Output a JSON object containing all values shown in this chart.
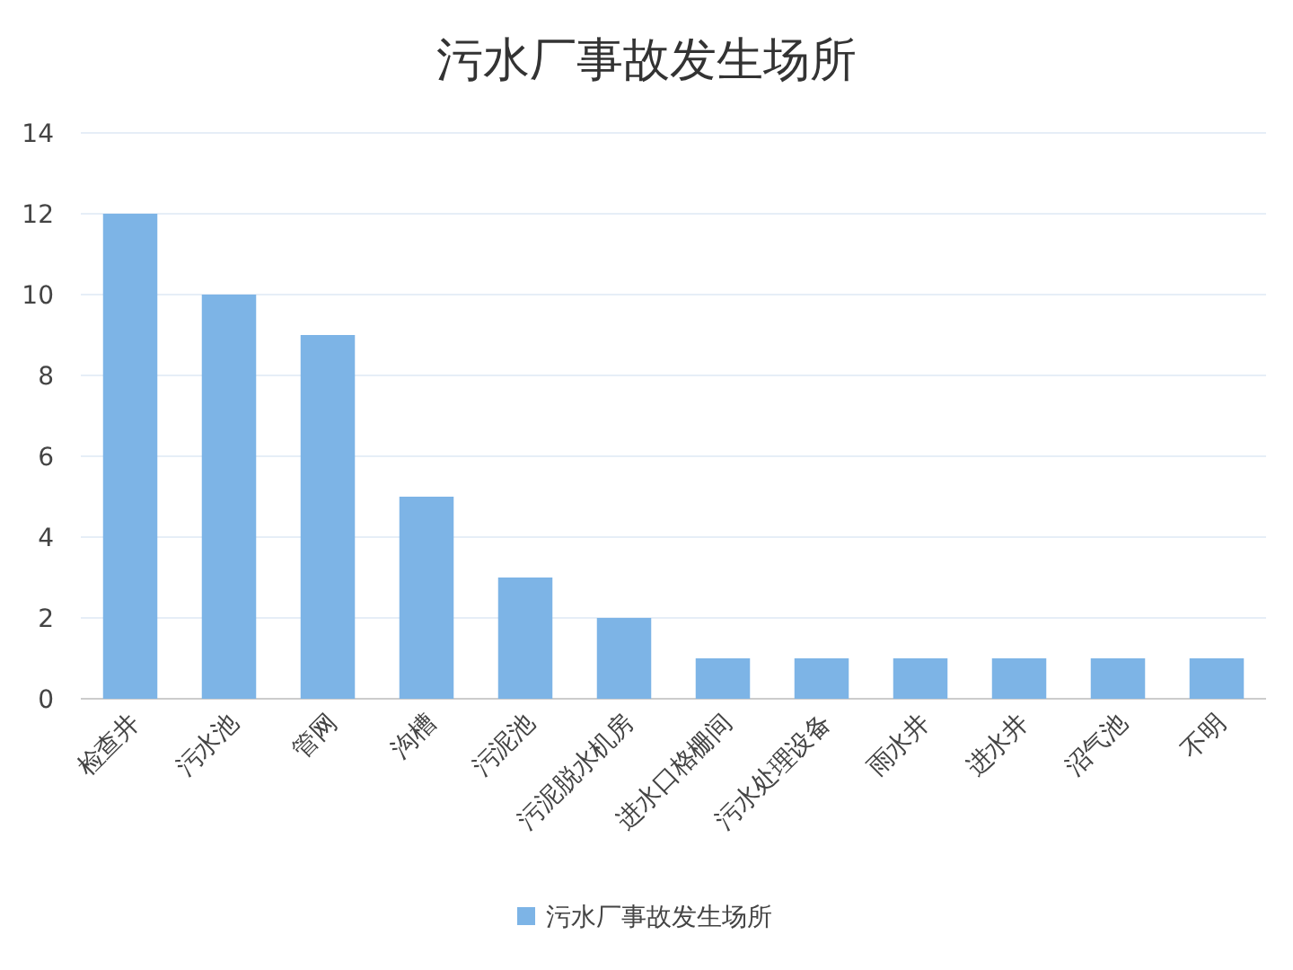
{
  "chart_data": {
    "type": "bar",
    "title": "污水厂事故发生场所",
    "categories": [
      "检查井",
      "污水池",
      "管网",
      "沟槽",
      "污泥池",
      "污泥脱水机房",
      "进水口格栅间",
      "污水处理设备",
      "雨水井",
      "进水井",
      "沼气池",
      "不明"
    ],
    "series": [
      {
        "name": "污水厂事故发生场所",
        "color": "#7db4e6",
        "values": [
          12,
          10,
          9,
          5,
          3,
          2,
          1,
          1,
          1,
          1,
          1,
          1
        ]
      }
    ],
    "ylim": [
      0,
      14
    ],
    "yticks": [
      0,
      2,
      4,
      6,
      8,
      10,
      12,
      14
    ],
    "grid": "y",
    "legend": "bottom"
  }
}
